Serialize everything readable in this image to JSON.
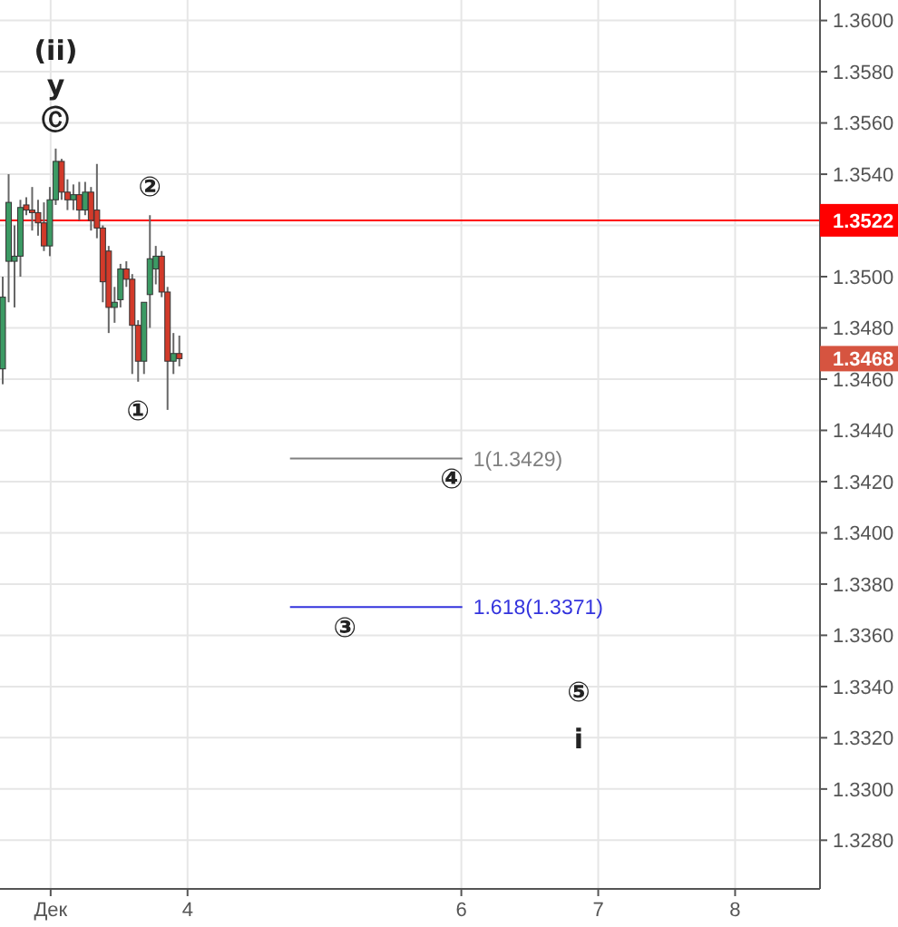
{
  "chart_data": {
    "type": "candlestick",
    "x": [
      2.65,
      2.693,
      2.736,
      2.779,
      2.822,
      2.865,
      2.908,
      2.951,
      2.994,
      3.037,
      3.08,
      3.123,
      3.166,
      3.209,
      3.252,
      3.295,
      3.338,
      3.381,
      3.424,
      3.467,
      3.51,
      3.553,
      3.596,
      3.639,
      3.682,
      3.725,
      3.768,
      3.811,
      3.854,
      3.897,
      3.94
    ],
    "ohlc": [
      [
        1.3464,
        1.35,
        1.3458,
        1.3492
      ],
      [
        1.3506,
        1.354,
        1.349,
        1.3529
      ],
      [
        1.3506,
        1.352,
        1.3488,
        1.3508
      ],
      [
        1.3508,
        1.353,
        1.35,
        1.3527
      ],
      [
        1.3528,
        1.3531,
        1.3524,
        1.3526
      ],
      [
        1.3526,
        1.3535,
        1.3518,
        1.3525
      ],
      [
        1.3525,
        1.353,
        1.3516,
        1.3521
      ],
      [
        1.3521,
        1.3529,
        1.351,
        1.3512
      ],
      [
        1.3512,
        1.3535,
        1.3508,
        1.353
      ],
      [
        1.353,
        1.355,
        1.3528,
        1.3545
      ],
      [
        1.3545,
        1.3546,
        1.353,
        1.3533
      ],
      [
        1.3533,
        1.3538,
        1.3526,
        1.353
      ],
      [
        1.353,
        1.3536,
        1.3526,
        1.3532
      ],
      [
        1.3532,
        1.3537,
        1.3522,
        1.3526
      ],
      [
        1.3526,
        1.3537,
        1.3524,
        1.3533
      ],
      [
        1.3533,
        1.3535,
        1.3518,
        1.3522
      ],
      [
        1.3526,
        1.3544,
        1.3515,
        1.3519
      ],
      [
        1.3519,
        1.352,
        1.349,
        1.3498
      ],
      [
        1.351,
        1.3512,
        1.3478,
        1.3488
      ],
      [
        1.3488,
        1.3496,
        1.3482,
        1.349
      ],
      [
        1.3491,
        1.3505,
        1.3488,
        1.3503
      ],
      [
        1.3503,
        1.3506,
        1.3496,
        1.3499
      ],
      [
        1.3499,
        1.3501,
        1.3462,
        1.3481
      ],
      [
        1.3481,
        1.3483,
        1.3459,
        1.3467
      ],
      [
        1.3467,
        1.349,
        1.3462,
        1.349
      ],
      [
        1.3493,
        1.3524,
        1.348,
        1.3507
      ],
      [
        1.3503,
        1.3512,
        1.3497,
        1.3508
      ],
      [
        1.3508,
        1.351,
        1.3492,
        1.3494
      ],
      [
        1.3494,
        1.3496,
        1.3448,
        1.3467
      ],
      [
        1.3467,
        1.3478,
        1.3462,
        1.347
      ],
      [
        1.347,
        1.3477,
        1.3465,
        1.3468
      ]
    ],
    "colors": [
      "#3c9a64",
      "#3c9a64",
      "#3c9a64",
      "#3c9a64",
      "#d23a2a",
      "#d23a2a",
      "#d23a2a",
      "#d23a2a",
      "#3c9a64",
      "#3c9a64",
      "#d23a2a",
      "#d23a2a",
      "#3c9a64",
      "#d23a2a",
      "#3c9a64",
      "#d23a2a",
      "#d23a2a",
      "#d23a2a",
      "#d23a2a",
      "#3c9a64",
      "#3c9a64",
      "#d23a2a",
      "#d23a2a",
      "#d23a2a",
      "#3c9a64",
      "#3c9a64",
      "#3c9a64",
      "#d23a2a",
      "#d23a2a",
      "#3c9a64",
      "#d23a2a"
    ],
    "xlim": [
      2.63,
      8.62
    ],
    "xticks": [
      {
        "value": 3,
        "label": "Дек"
      },
      4,
      6,
      7,
      8
    ],
    "ylim": [
      1.3261,
      1.3608
    ],
    "yticks": [
      {
        "value": 1.328,
        "label": "1.3280"
      },
      {
        "value": 1.33,
        "label": "1.3300"
      },
      {
        "value": 1.332,
        "label": "1.3320"
      },
      {
        "value": 1.334,
        "label": "1.3340"
      },
      {
        "value": 1.336,
        "label": "1.3360"
      },
      {
        "value": 1.338,
        "label": "1.3380"
      },
      {
        "value": 1.34,
        "label": "1.3400"
      },
      {
        "value": 1.342,
        "label": "1.3420"
      },
      {
        "value": 1.344,
        "label": "1.3440"
      },
      {
        "value": 1.346,
        "label": "1.3460"
      },
      {
        "value": 1.348,
        "label": "1.3480"
      },
      {
        "value": 1.35,
        "label": "1.3500"
      },
      {
        "value": 1.352,
        "label": null
      },
      {
        "value": 1.354,
        "label": "1.3540"
      },
      {
        "value": 1.356,
        "label": "1.3560"
      },
      {
        "value": 1.358,
        "label": "1.3580"
      },
      {
        "value": 1.36,
        "label": "1.3600"
      }
    ],
    "grid": true,
    "ref_lines": [
      {
        "axis": "y",
        "value": 1.3522,
        "label": "1.3522",
        "color": "#ff0000"
      },
      {
        "axis": "y",
        "value": 1.3429,
        "label": "1(1.3429)",
        "color": "#808080"
      },
      {
        "axis": "y",
        "value": 1.3371,
        "label": "1.618(1.3371)",
        "color": "#3333dd"
      }
    ],
    "annotations": [
      "1.3468",
      {
        "text": "(ii)",
        "x": 3.037,
        "y": 1.355
      },
      {
        "text": "y",
        "x": 3.037,
        "y": 1.355
      },
      {
        "text": "Ⓒ",
        "x": 3.037,
        "y": 1.355
      },
      {
        "text": "②",
        "x": 3.725,
        "y": 1.3524
      },
      {
        "text": "①",
        "x": 3.639,
        "y": 1.3459
      },
      {
        "text": "④",
        "x": 5.93,
        "y": 1.3429
      },
      {
        "text": "③",
        "x": 5.15,
        "y": 1.3371
      },
      "⑤",
      "i"
    ]
  }
}
